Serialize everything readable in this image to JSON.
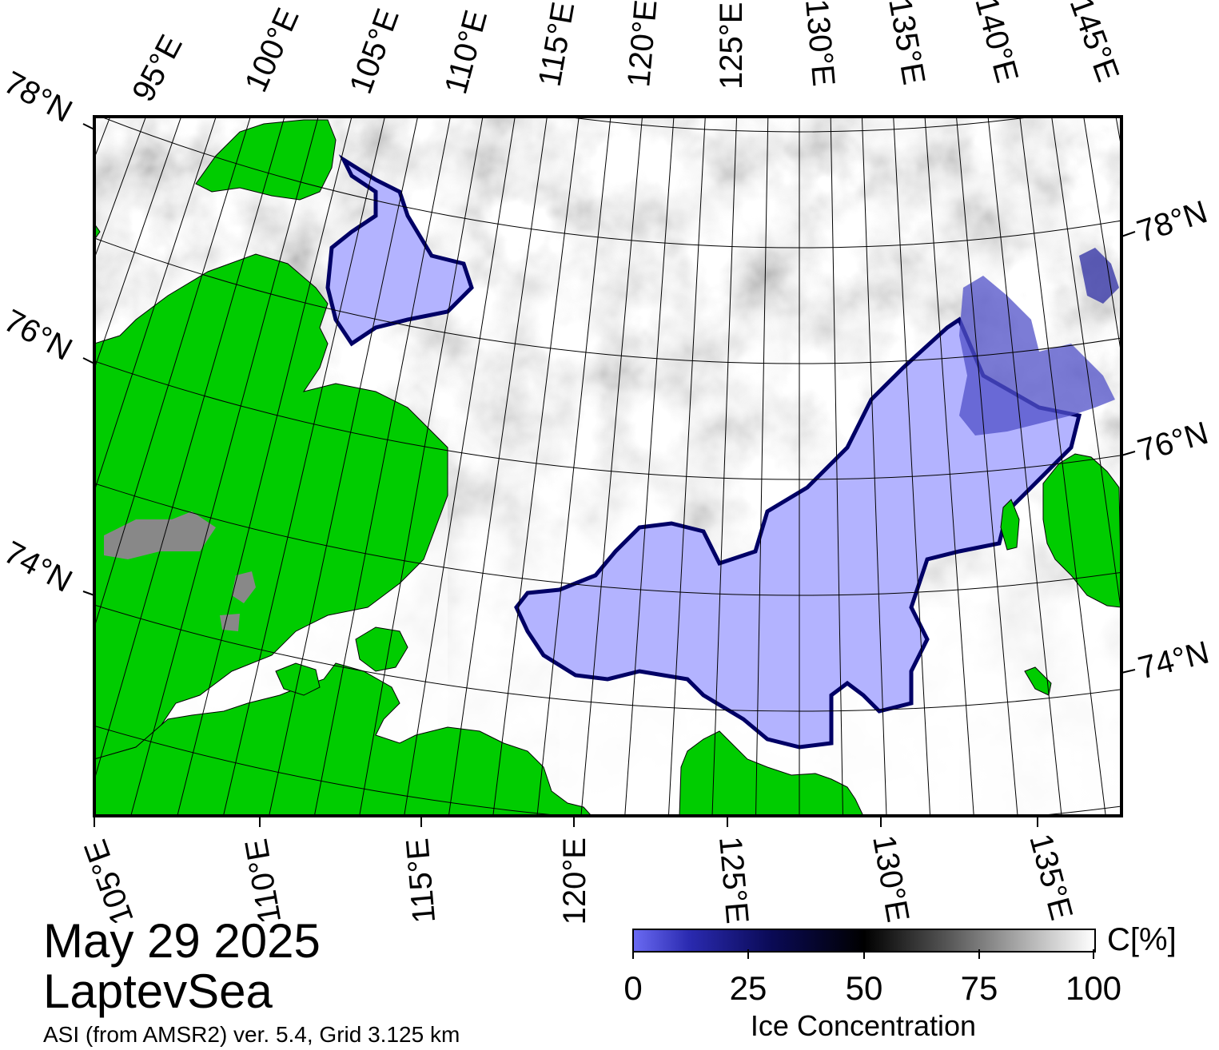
{
  "map": {
    "date": "May 29 2025",
    "region": "LaptevSea",
    "source": "ASI (from AMSR2) ver. 5.4,  Grid 3.125 km",
    "top_lon_labels": [
      "95°E",
      "100°E",
      "105°E",
      "110°E",
      "115°E",
      "120°E",
      "125°E",
      "130°E",
      "135°E",
      "140°E",
      "145°E"
    ],
    "bottom_lon_labels": [
      "105°E",
      "110°E",
      "115°E",
      "120°E",
      "125°E",
      "130°E",
      "135°E"
    ],
    "left_lat_labels": [
      "78°N",
      "76°N",
      "74°N"
    ],
    "right_lat_labels": [
      "78°N",
      "76°N",
      "74°N"
    ],
    "colors": {
      "land": "#00cc00",
      "land_unmapped": "#888888",
      "open_water_low_ice": "#b3b3ff",
      "ice_edge": "#000066"
    }
  },
  "colorbar": {
    "title": "Ice Concentration",
    "unit": "C[%]",
    "ticks": [
      "0",
      "25",
      "50",
      "75",
      "100"
    ]
  }
}
